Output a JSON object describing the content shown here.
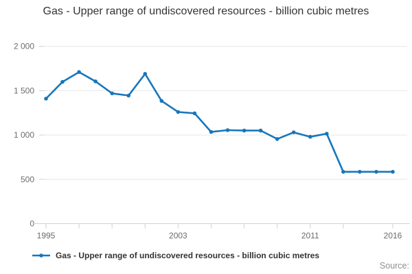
{
  "title": "Gas - Upper range of undiscovered resources - billion cubic metres",
  "legend": {
    "label": "Gas - Upper range of undiscovered resources - billion cubic metres"
  },
  "source_label": "Source:",
  "colors": {
    "line": "#1776bb",
    "grid": "#e6e6e6",
    "axis": "#c7d3df",
    "tick_label": "#6b6b6b",
    "title_text": "#333333",
    "legend_text": "#333333",
    "source_text": "#8e8e8e"
  },
  "chart_data": {
    "type": "line",
    "title": "Gas - Upper range of undiscovered resources - billion cubic metres",
    "xlabel": "",
    "ylabel": "",
    "x": [
      1995,
      1996,
      1997,
      1998,
      1999,
      2000,
      2001,
      2002,
      2003,
      2004,
      2005,
      2006,
      2007,
      2008,
      2009,
      2010,
      2011,
      2012,
      2013,
      2014,
      2015,
      2016
    ],
    "series": [
      {
        "name": "Gas - Upper range of undiscovered resources - billion cubic metres",
        "values": [
          1410,
          1600,
          1710,
          1605,
          1470,
          1445,
          1690,
          1385,
          1260,
          1245,
          1035,
          1055,
          1050,
          1050,
          955,
          1030,
          980,
          1015,
          585,
          585,
          585,
          585
        ]
      }
    ],
    "ylim": [
      0,
      2000
    ],
    "yticks": [
      0,
      500,
      1000,
      1500,
      2000
    ],
    "ytick_labels": [
      "0",
      "500",
      "1 000",
      "1 500",
      "2 000"
    ],
    "xticks": [
      1995,
      1997,
      1999,
      2001,
      2003,
      2005,
      2007,
      2009,
      2011,
      2013,
      2016
    ],
    "xtick_labeled": [
      1995,
      2003,
      2011,
      2016
    ],
    "grid": "horizontal",
    "legend_position": "bottom",
    "marker": "circle"
  }
}
